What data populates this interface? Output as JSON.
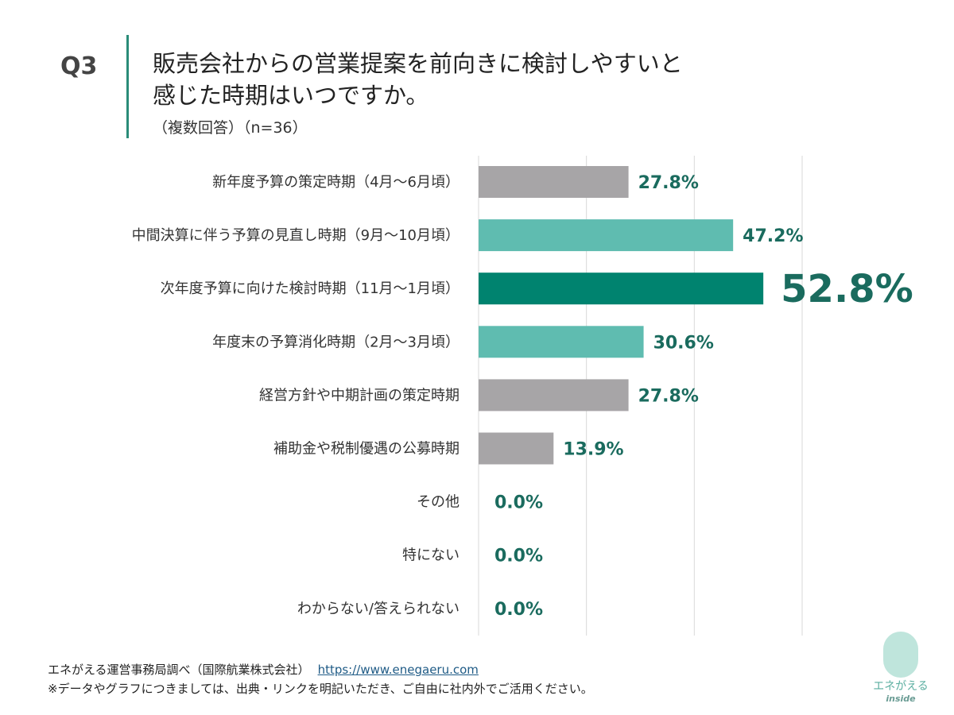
{
  "header": {
    "question_number": "Q3",
    "title_line1": "販売会社からの営業提案を前向きに検討しやすいと",
    "title_line2": "感じた時期はいつですか。",
    "subtitle": "（複数回答）（n=36）"
  },
  "chart_data": {
    "type": "bar",
    "orientation": "horizontal",
    "categories": [
      "新年度予算の策定時期（4月～6月頃）",
      "中間決算に伴う予算の見直し時期（9月～10月頃）",
      "次年度予算に向けた検討時期（11月～1月頃）",
      "年度末の予算消化時期（2月～3月頃）",
      "経営方針や中期計画の策定時期",
      "補助金や税制優遇の公募時期",
      "その他",
      "特にない",
      "わからない/答えられない"
    ],
    "values": [
      27.8,
      47.2,
      52.8,
      30.6,
      27.8,
      13.9,
      0.0,
      0.0,
      0.0
    ],
    "data_labels": [
      "27.8%",
      "47.2%",
      "52.8%",
      "30.6%",
      "27.8%",
      "13.9%",
      "0.0%",
      "0.0%",
      "0.0%"
    ],
    "bar_colors": [
      "#a7a5a7",
      "#5fbcb0",
      "#00836f",
      "#5fbcb0",
      "#a7a5a7",
      "#a7a5a7",
      "#a7a5a7",
      "#a7a5a7",
      "#a7a5a7"
    ],
    "highlight_index": 2,
    "label_color": "#1a6b5e",
    "xlim": [
      0,
      60
    ],
    "grid": true,
    "gridlines": [
      0,
      20,
      40,
      60
    ]
  },
  "footer": {
    "source": "エネがえる運営事務局調べ（国際航業株式会社）",
    "url": "https://www.enegaeru.com",
    "note": "※データやグラフにつきましては、出典・リンクを明記いただき、ご自由に社内外でご活用ください。"
  },
  "logo": {
    "text": "エネがえる",
    "sub": "inside"
  }
}
